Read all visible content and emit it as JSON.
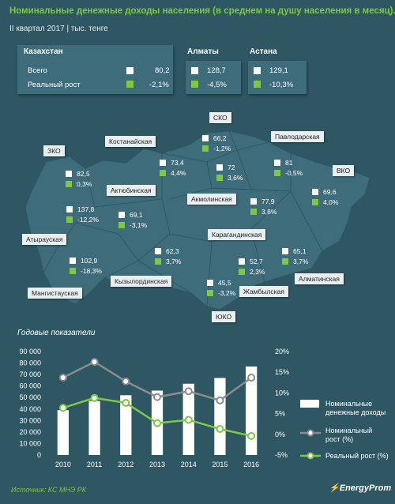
{
  "header": {
    "title": "Номинальные денежные доходы населения (в среднем на душу населения в месяц).",
    "subtitle": "II квартал 2017 | тыс. тенге"
  },
  "summary": {
    "kz_title": "Казахстан",
    "label_total": "Всего",
    "label_real": "Реальный рост",
    "kz_total": "80,2",
    "kz_real": "-2,1%",
    "almaty_title": "Алматы",
    "almaty_total": "128,7",
    "almaty_real": "-4,5%",
    "astana_title": "Астана",
    "astana_total": "129,1",
    "astana_real": "-10,3%"
  },
  "regions": [
    {
      "name": "СКО",
      "total": "66,2",
      "real": "-1,2%"
    },
    {
      "name": "Костанайская",
      "total": "73,4",
      "real": "4,4%"
    },
    {
      "name": "Павлодарская",
      "total": "81",
      "real": "-0,5%"
    },
    {
      "name": "ЗКО",
      "total": "82,5",
      "real": "0,3%"
    },
    {
      "name": "Акмолинская",
      "total": "72",
      "real": "3,6%"
    },
    {
      "name": "ВКО",
      "total": "69,6",
      "real": "4,0%"
    },
    {
      "name": "Актюбинская",
      "total": "69,1",
      "real": "-3,1%"
    },
    {
      "name": "Атырауская",
      "total": "137,8",
      "real": "-12,2%"
    },
    {
      "name": "Карагандинская",
      "total": "77,9",
      "real": "3,8%"
    },
    {
      "name": "Мангистауская",
      "total": "102,9",
      "real": "-18,3%"
    },
    {
      "name": "Кызылординская",
      "total": "62,3",
      "real": "3,7%"
    },
    {
      "name": "Жамбылская",
      "total": "52,7",
      "real": "2,3%"
    },
    {
      "name": "Алматинская",
      "total": "65,1",
      "real": "3,7%"
    },
    {
      "name": "ЮКО",
      "total": "45,5",
      "real": "-3,2%"
    }
  ],
  "chart_title": "Годовые показатели",
  "footer": {
    "source": "Источник: КС МНЭ РК",
    "logo": "EnergyProm"
  },
  "colors": {
    "background": "#2e5663",
    "map": "#3e6c7a",
    "green": "#7cc943",
    "gray": "#8c8c8c",
    "white": "#ffffff"
  },
  "chart_data": {
    "type": "bar",
    "categories": [
      "2010",
      "2011",
      "2012",
      "2013",
      "2014",
      "2015",
      "2016"
    ],
    "y_left_ticks": [
      "0",
      "10 000",
      "20 000",
      "30 000",
      "40 000",
      "50 000",
      "60 000",
      "70 000",
      "80 000",
      "90 000"
    ],
    "y_right_ticks": [
      "-5%",
      "0%",
      "5%",
      "10%",
      "15%",
      "20%"
    ],
    "y_left_range": [
      0,
      90000
    ],
    "y_right_range": [
      -5,
      20
    ],
    "series": [
      {
        "name": "Номинальные денежные доходы",
        "axis": "left",
        "type": "bar",
        "values": [
          39000,
          47000,
          52000,
          56000,
          62000,
          67000,
          77000
        ]
      },
      {
        "name": "Номинальный рост (%)",
        "axis": "right",
        "type": "line",
        "values": [
          13.7,
          17.5,
          12.8,
          9.0,
          10.4,
          8.2,
          13.7
        ]
      },
      {
        "name": "Реальный рост (%)",
        "axis": "right",
        "type": "line",
        "values": [
          6.4,
          8.8,
          7.6,
          2.7,
          3.5,
          1.3,
          -0.4
        ]
      }
    ],
    "legend_position": "right"
  }
}
